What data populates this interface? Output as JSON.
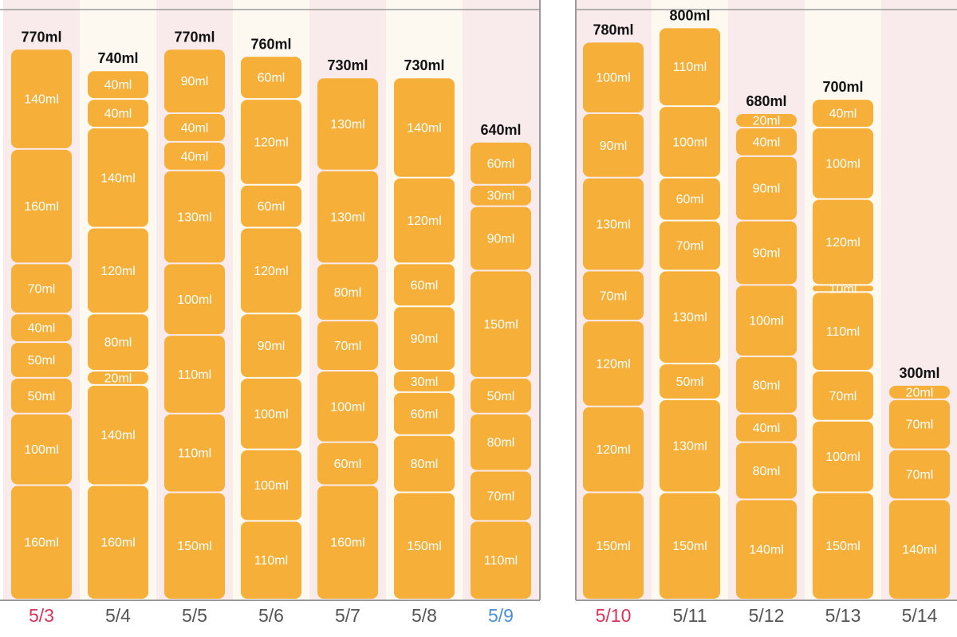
{
  "colors": {
    "bar": "#f6b039",
    "column_pink": "#f9eaec",
    "column_cream": "#fdf9f0",
    "frame": "#9a9a9a",
    "sunday": "#d8355a",
    "saturday": "#4a90d9"
  },
  "chart_data": [
    {
      "type": "bar",
      "stacked": true,
      "unit": "ml",
      "ylim": [
        0,
        900
      ],
      "categories": [
        "5/3",
        "5/4",
        "5/5",
        "5/6",
        "5/7",
        "5/8",
        "5/9"
      ],
      "day_colors": [
        "red",
        "default",
        "default",
        "default",
        "default",
        "default",
        "blue"
      ],
      "totals": [
        "770ml",
        "740ml",
        "770ml",
        "760ml",
        "730ml",
        "730ml",
        "640ml"
      ],
      "stacks": [
        [
          160,
          100,
          50,
          50,
          40,
          70,
          160,
          140
        ],
        [
          160,
          140,
          20,
          80,
          120,
          140,
          40,
          40
        ],
        [
          150,
          110,
          110,
          100,
          130,
          40,
          40,
          90
        ],
        [
          110,
          100,
          100,
          90,
          120,
          60,
          120,
          60
        ],
        [
          160,
          60,
          100,
          70,
          80,
          130,
          130
        ],
        [
          150,
          80,
          60,
          30,
          90,
          60,
          120,
          140
        ],
        [
          110,
          70,
          80,
          50,
          150,
          90,
          30,
          60
        ]
      ]
    },
    {
      "type": "bar",
      "stacked": true,
      "unit": "ml",
      "ylim": [
        0,
        900
      ],
      "categories": [
        "5/10",
        "5/11",
        "5/12",
        "5/13",
        "5/14"
      ],
      "day_colors": [
        "red",
        "default",
        "default",
        "default",
        "default"
      ],
      "totals": [
        "780ml",
        "800ml",
        "680ml",
        "700ml",
        "300ml"
      ],
      "stacks": [
        [
          150,
          120,
          120,
          70,
          130,
          90,
          100
        ],
        [
          150,
          130,
          50,
          130,
          70,
          60,
          100,
          110
        ],
        [
          140,
          80,
          40,
          80,
          100,
          90,
          90,
          40,
          20
        ],
        [
          150,
          100,
          70,
          110,
          10,
          120,
          100,
          40
        ],
        [
          140,
          70,
          70,
          20
        ]
      ]
    }
  ]
}
